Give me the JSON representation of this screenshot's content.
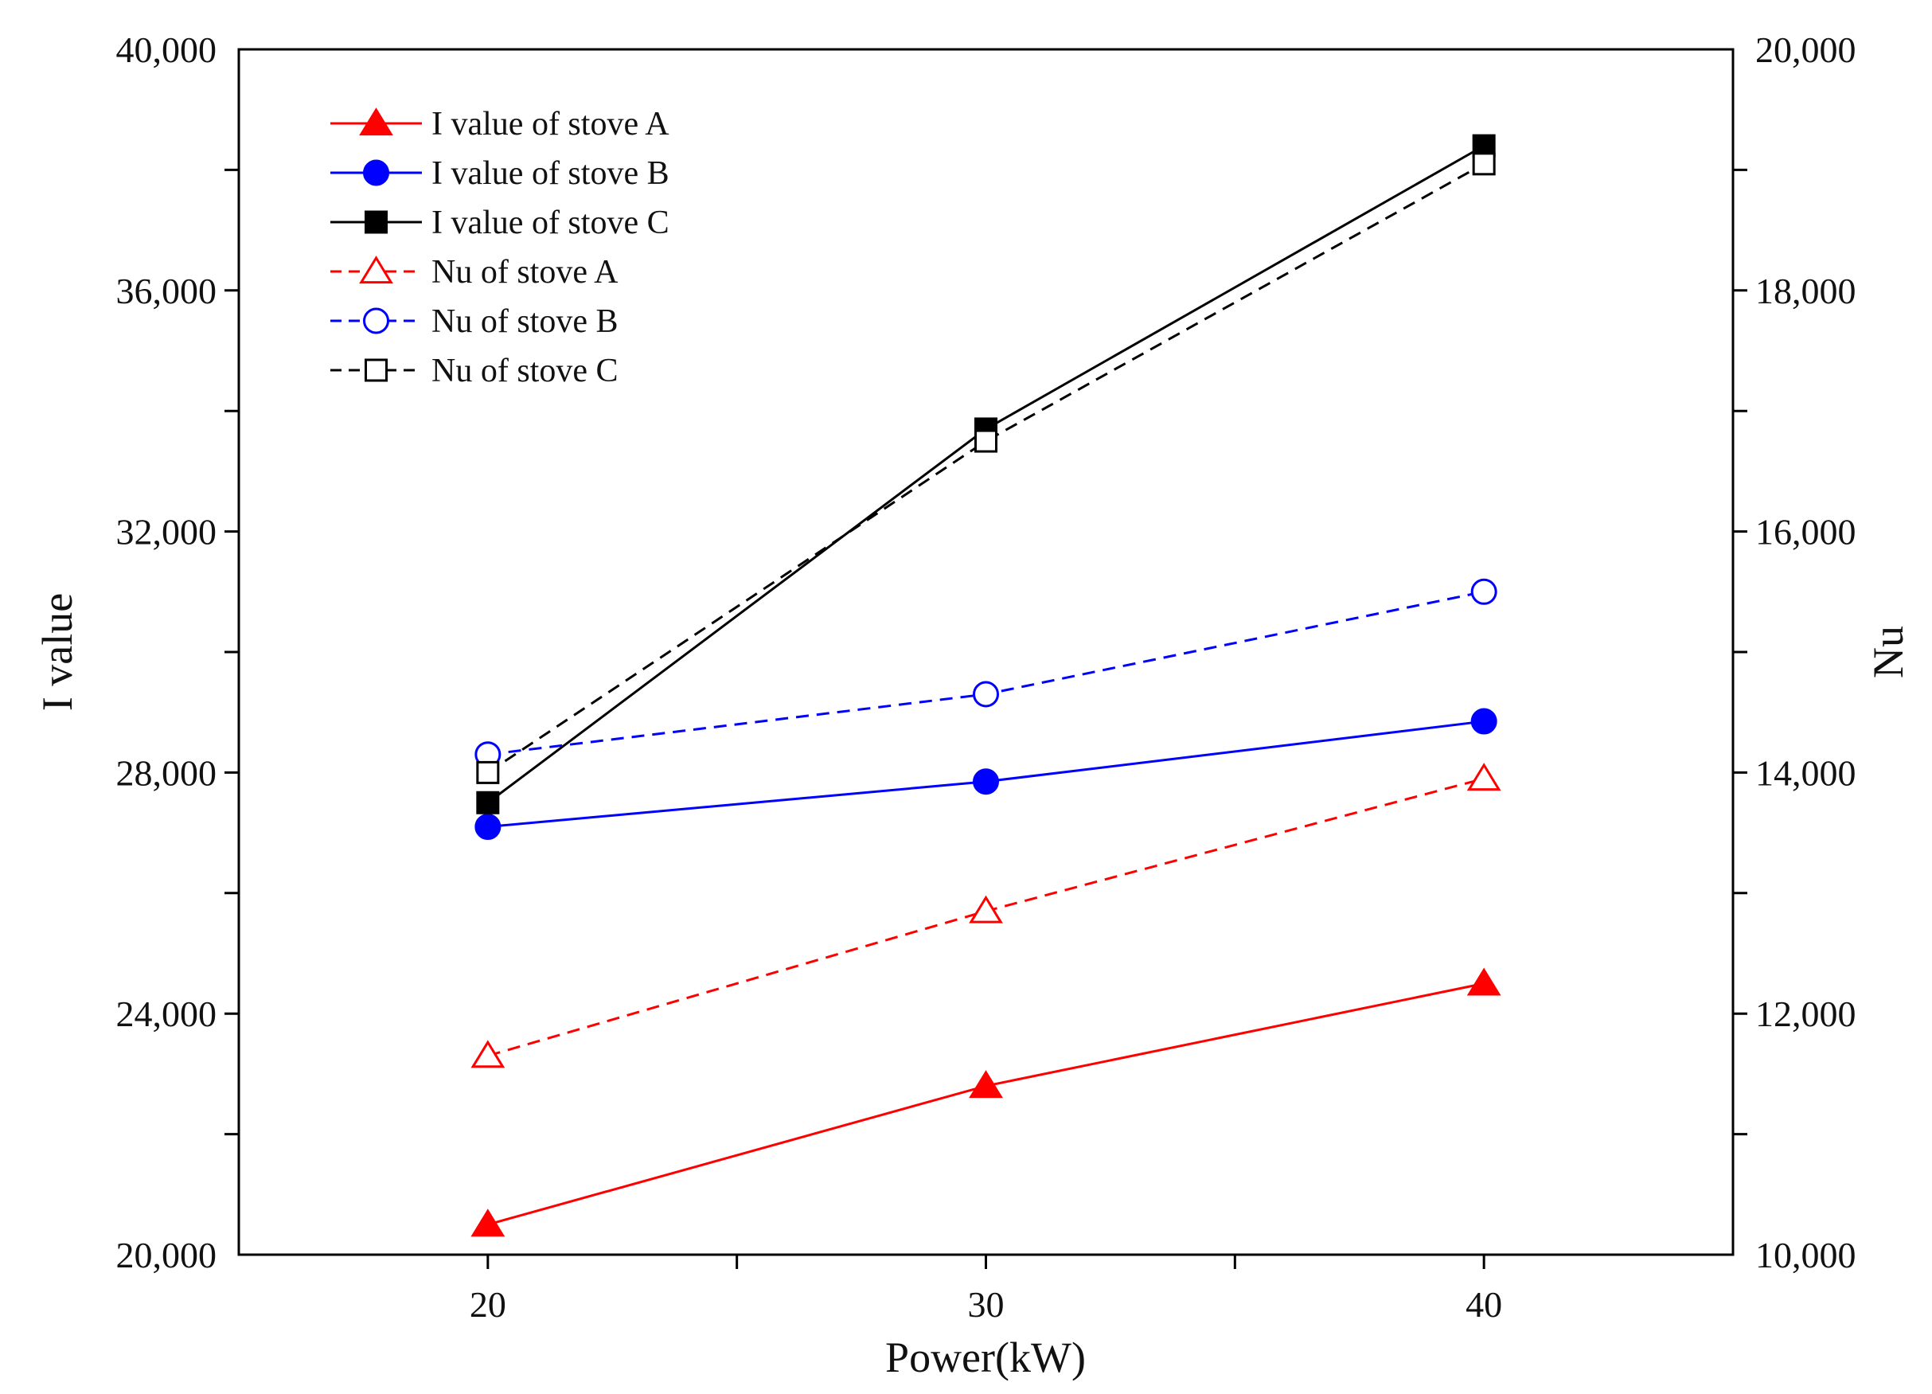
{
  "chart_data": {
    "type": "line",
    "xlabel": "Power(kW)",
    "ylabel": "I value",
    "y2label": "Nu",
    "xlim": [
      15,
      45
    ],
    "ylim": [
      20000,
      40000
    ],
    "y2lim": [
      10000,
      20000
    ],
    "x_ticks": [
      20,
      30,
      40
    ],
    "x_tick_labels": [
      "20",
      "30",
      "40"
    ],
    "y_ticks": [
      20000,
      24000,
      28000,
      32000,
      36000,
      40000
    ],
    "y_tick_labels": [
      "20,000",
      "24,000",
      "28,000",
      "32,000",
      "36,000",
      "40,000"
    ],
    "y2_ticks": [
      10000,
      12000,
      14000,
      16000,
      18000,
      20000
    ],
    "y2_tick_labels": [
      "10,000",
      "12,000",
      "14,000",
      "16,000",
      "18,000",
      "20,000"
    ],
    "legend_position": "top-left",
    "series": [
      {
        "name": "I value of stove A",
        "axis": "left",
        "x": [
          20,
          30,
          40
        ],
        "values": [
          20500,
          22800,
          24500
        ],
        "color": "#ff0000",
        "marker": "triangle",
        "filled": true,
        "dash": "solid"
      },
      {
        "name": "I value of stove B",
        "axis": "left",
        "x": [
          20,
          30,
          40
        ],
        "values": [
          27100,
          27850,
          28850
        ],
        "color": "#0000ff",
        "marker": "circle",
        "filled": true,
        "dash": "solid"
      },
      {
        "name": "I value of stove C",
        "axis": "left",
        "x": [
          20,
          30,
          40
        ],
        "values": [
          27500,
          33700,
          38400
        ],
        "color": "#000000",
        "marker": "square",
        "filled": true,
        "dash": "solid"
      },
      {
        "name": "Nu of stove A",
        "axis": "right",
        "x": [
          20,
          30,
          40
        ],
        "values": [
          11650,
          12850,
          13950
        ],
        "color": "#ff0000",
        "marker": "triangle",
        "filled": false,
        "dash": "dashed"
      },
      {
        "name": "Nu of stove B",
        "axis": "right",
        "x": [
          20,
          30,
          40
        ],
        "values": [
          14150,
          14650,
          15500
        ],
        "color": "#0000ff",
        "marker": "circle",
        "filled": false,
        "dash": "dashed"
      },
      {
        "name": "Nu of stove C",
        "axis": "right",
        "x": [
          20,
          30,
          40
        ],
        "values": [
          14000,
          16750,
          19050
        ],
        "color": "#000000",
        "marker": "square",
        "filled": false,
        "dash": "dashed"
      }
    ]
  }
}
